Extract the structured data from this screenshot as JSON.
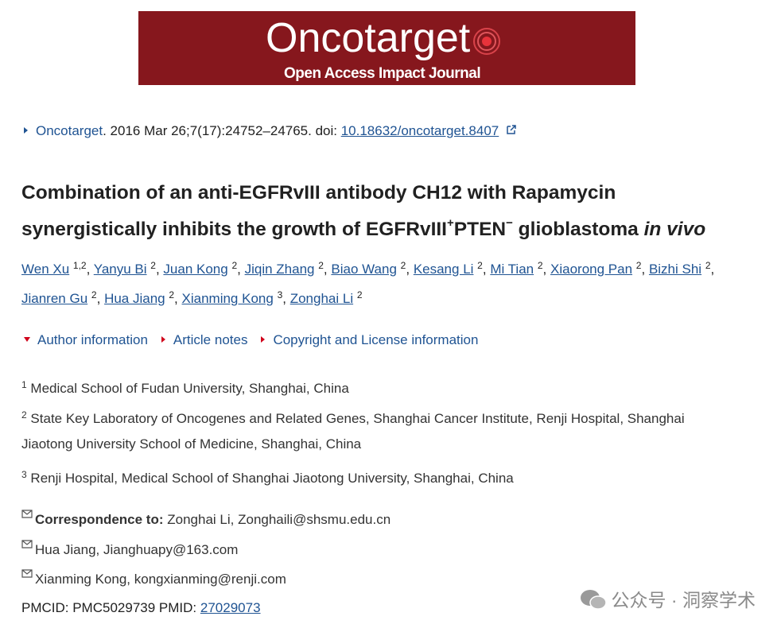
{
  "logo": {
    "name": "Oncotarget",
    "tagline": "Open Access Impact Journal"
  },
  "citation": {
    "journal": "Oncotarget",
    "details": ". 2016 Mar 26;7(17):24752–24765. doi: ",
    "doi": "10.18632/oncotarget.8407"
  },
  "title": {
    "line1": "Combination of an anti-EGFRvIII antibody CH12 with Rapamycin",
    "line2_a": "synergistically inhibits the growth of EGFRvIII",
    "sup1": "+",
    "line2_b": "PTEN",
    "sup2": "−",
    "line2_c": " glioblastoma ",
    "italic": "in vivo"
  },
  "separator": ",",
  "authors": [
    [
      {
        "name": "Wen Xu",
        "aff": "1,2"
      },
      {
        "name": "Yanyu Bi",
        "aff": "2"
      },
      {
        "name": "Juan Kong",
        "aff": "2"
      },
      {
        "name": "Jiqin Zhang",
        "aff": "2"
      },
      {
        "name": "Biao Wang",
        "aff": "2"
      },
      {
        "name": "Kesang Li",
        "aff": "2"
      },
      {
        "name": "Mi Tian",
        "aff": "2"
      },
      {
        "name": "Xiaorong Pan",
        "aff": "2"
      },
      {
        "name": "Bizhi Shi",
        "aff": "2"
      }
    ],
    [
      {
        "name": "Jianren Gu",
        "aff": "2"
      },
      {
        "name": "Hua Jiang",
        "aff": "2"
      },
      {
        "name": "Xianming Kong",
        "aff": "3"
      },
      {
        "name": "Zonghai Li",
        "aff": "2"
      }
    ]
  ],
  "sections": [
    "Author information",
    "Article notes",
    "Copyright and License information"
  ],
  "affiliations": [
    {
      "num": "1",
      "lines": [
        "Medical School of Fudan University, Shanghai, China"
      ]
    },
    {
      "num": "2",
      "lines": [
        "State Key Laboratory of Oncogenes and Related Genes, Shanghai Cancer Institute, Renji Hospital, Shanghai",
        "Jiaotong University School of Medicine, Shanghai, China"
      ]
    },
    {
      "num": "3",
      "lines": [
        "Renji Hospital, Medical School of Shanghai Jiaotong University, Shanghai, China"
      ]
    }
  ],
  "correspondence": {
    "label": "Correspondence to:",
    "items": [
      "Zonghai Li, Zonghaili@shsmu.edu.cn",
      "Hua Jiang, Jianghuapy@163.com",
      "Xianming Kong, kongxianming@renji.com"
    ]
  },
  "ids": {
    "pmcid": "PMCID: PMC5029739",
    "pmid_label": "PMID:",
    "pmid": "27029073"
  },
  "watermark": "公众号 · 洞察学术"
}
